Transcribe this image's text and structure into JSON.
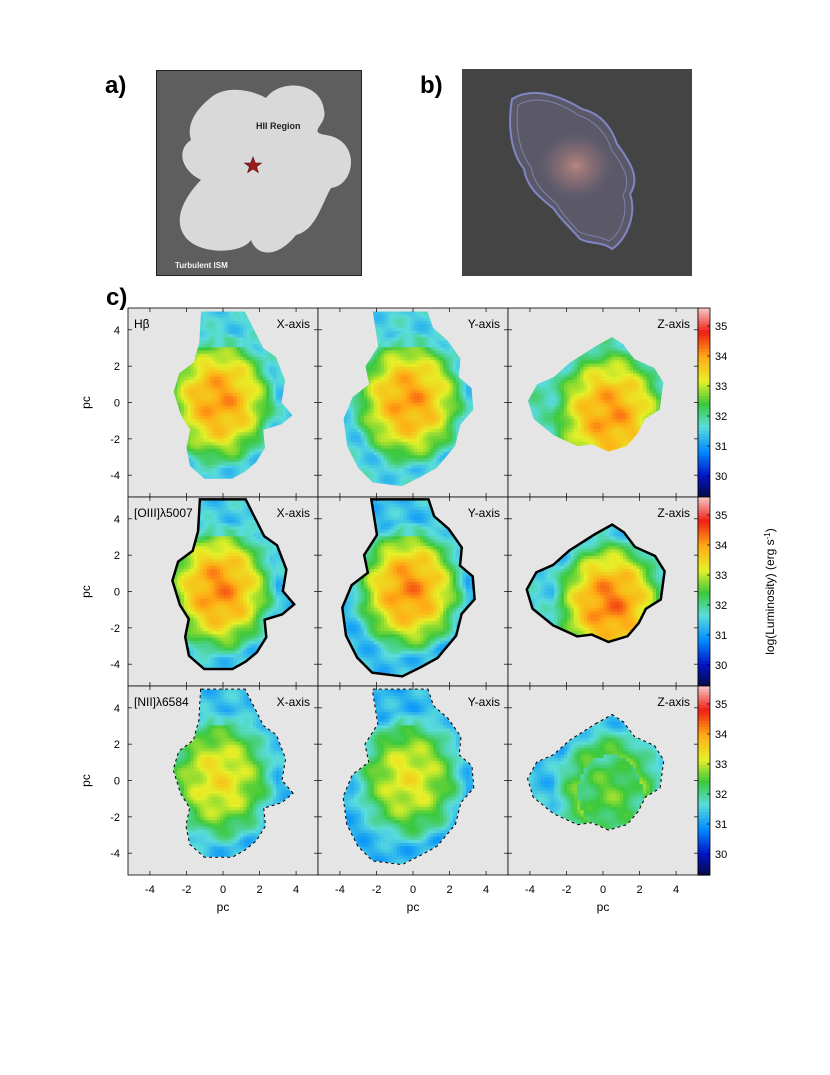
{
  "panel_labels": {
    "a": "a)",
    "b": "b)",
    "c": "c)"
  },
  "schematic": {
    "hii_label": "HII Region",
    "ism_label": "Turbulent ISM",
    "background_color": "#5e5e5e",
    "region_color": "#d9d9d9",
    "star_color": "#9b1c1c"
  },
  "render": {
    "background_color": "#444444",
    "shell_color": "#8a8fd8",
    "core_color": "#c09088"
  },
  "chart_data": {
    "type": "heatmap",
    "rows": [
      {
        "line_label": "Hβ"
      },
      {
        "line_label": "[OIII]λ5007"
      },
      {
        "line_label": "[NII]λ6584"
      }
    ],
    "columns": [
      "X-axis",
      "Y-axis",
      "Z-axis"
    ],
    "x_ticks": [
      "-4",
      "-2",
      "0",
      "2",
      "4"
    ],
    "y_ticks": [
      "4",
      "2",
      "0",
      "-2",
      "-4"
    ],
    "xlim": [
      -5.2,
      5.2
    ],
    "ylim": [
      -5.2,
      5.2
    ],
    "xlabel": "pc",
    "ylabel": "pc",
    "colorbar": {
      "label": "log(Luminosity) (erg s",
      "label_sup": "-1",
      "label_close": ")",
      "range": [
        29.3,
        35.6
      ],
      "ticks": [
        "35",
        "34",
        "33",
        "32",
        "31",
        "30"
      ]
    },
    "panel_background": "#e5e5e5"
  }
}
